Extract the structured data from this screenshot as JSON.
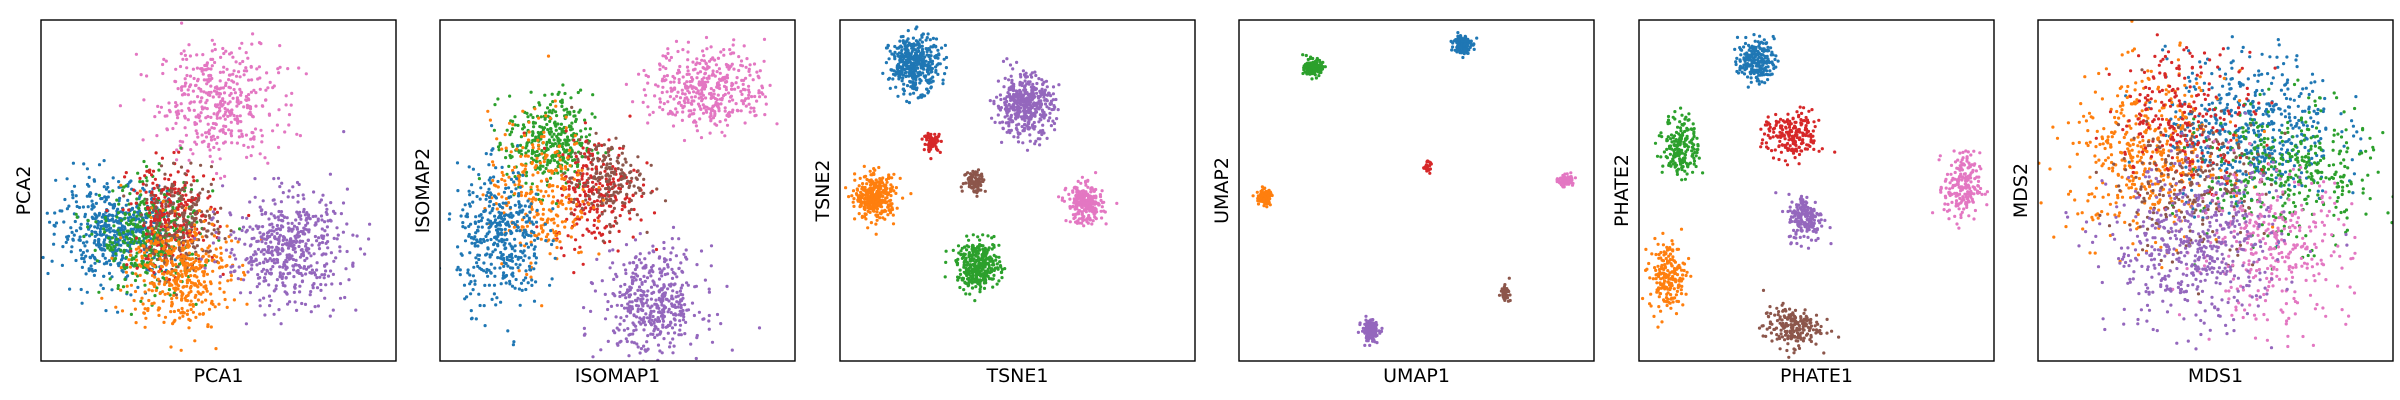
{
  "colors": {
    "blue": "#1f77b4",
    "orange": "#ff7f0e",
    "green": "#2ca02c",
    "red": "#d62728",
    "purple": "#9467bd",
    "brown": "#8c564b",
    "pink": "#e377c2"
  },
  "chart_data": [
    {
      "type": "scatter",
      "xlabel": "PCA1",
      "ylabel": "PCA2",
      "xlim": [
        0,
        1
      ],
      "ylim": [
        0,
        1
      ],
      "ticks": "none",
      "grid": false,
      "clusters": [
        {
          "color": "pink",
          "cx": 0.5,
          "cy": 0.76,
          "sx": 0.085,
          "sy": 0.085,
          "n": 420
        },
        {
          "color": "blue",
          "cx": 0.21,
          "cy": 0.38,
          "sx": 0.08,
          "sy": 0.07,
          "n": 520
        },
        {
          "color": "green",
          "cx": 0.31,
          "cy": 0.36,
          "sx": 0.07,
          "sy": 0.08,
          "n": 380
        },
        {
          "color": "red",
          "cx": 0.37,
          "cy": 0.42,
          "sx": 0.06,
          "sy": 0.08,
          "n": 260
        },
        {
          "color": "brown",
          "cx": 0.4,
          "cy": 0.4,
          "sx": 0.055,
          "sy": 0.07,
          "n": 200
        },
        {
          "color": "orange",
          "cx": 0.39,
          "cy": 0.26,
          "sx": 0.07,
          "sy": 0.08,
          "n": 420
        },
        {
          "color": "purple",
          "cx": 0.69,
          "cy": 0.33,
          "sx": 0.085,
          "sy": 0.08,
          "n": 520
        }
      ]
    },
    {
      "type": "scatter",
      "xlabel": "ISOMAP1",
      "ylabel": "ISOMAP2",
      "xlim": [
        0,
        1
      ],
      "ylim": [
        0,
        1
      ],
      "ticks": "none",
      "grid": false,
      "clusters": [
        {
          "color": "pink",
          "cx": 0.76,
          "cy": 0.8,
          "sx": 0.08,
          "sy": 0.06,
          "n": 420
        },
        {
          "color": "green",
          "cx": 0.31,
          "cy": 0.64,
          "sx": 0.06,
          "sy": 0.07,
          "n": 360
        },
        {
          "color": "red",
          "cx": 0.44,
          "cy": 0.5,
          "sx": 0.06,
          "sy": 0.08,
          "n": 260
        },
        {
          "color": "brown",
          "cx": 0.47,
          "cy": 0.53,
          "sx": 0.05,
          "sy": 0.06,
          "n": 180
        },
        {
          "color": "orange",
          "cx": 0.28,
          "cy": 0.5,
          "sx": 0.07,
          "sy": 0.11,
          "n": 280
        },
        {
          "color": "blue",
          "cx": 0.17,
          "cy": 0.36,
          "sx": 0.06,
          "sy": 0.1,
          "n": 420
        },
        {
          "color": "purple",
          "cx": 0.6,
          "cy": 0.17,
          "sx": 0.07,
          "sy": 0.08,
          "n": 460
        }
      ]
    },
    {
      "type": "scatter",
      "xlabel": "TSNE1",
      "ylabel": "TSNE2",
      "xlim": [
        0,
        1
      ],
      "ylim": [
        0,
        1
      ],
      "ticks": "none",
      "grid": false,
      "clusters": [
        {
          "color": "blue",
          "cx": 0.21,
          "cy": 0.87,
          "sx": 0.035,
          "sy": 0.04,
          "n": 420
        },
        {
          "color": "purple",
          "cx": 0.52,
          "cy": 0.75,
          "sx": 0.04,
          "sy": 0.045,
          "n": 460
        },
        {
          "color": "red",
          "cx": 0.26,
          "cy": 0.64,
          "sx": 0.012,
          "sy": 0.014,
          "n": 60
        },
        {
          "color": "brown",
          "cx": 0.38,
          "cy": 0.53,
          "sx": 0.015,
          "sy": 0.018,
          "n": 90
        },
        {
          "color": "orange",
          "cx": 0.1,
          "cy": 0.48,
          "sx": 0.028,
          "sy": 0.032,
          "n": 340
        },
        {
          "color": "pink",
          "cx": 0.69,
          "cy": 0.46,
          "sx": 0.025,
          "sy": 0.028,
          "n": 260
        },
        {
          "color": "green",
          "cx": 0.39,
          "cy": 0.28,
          "sx": 0.03,
          "sy": 0.035,
          "n": 360
        }
      ]
    },
    {
      "type": "scatter",
      "xlabel": "UMAP1",
      "ylabel": "UMAP2",
      "xlim": [
        0,
        1
      ],
      "ylim": [
        0,
        1
      ],
      "ticks": "none",
      "grid": false,
      "clusters": [
        {
          "color": "blue",
          "cx": 0.63,
          "cy": 0.93,
          "sx": 0.012,
          "sy": 0.014,
          "n": 160
        },
        {
          "color": "green",
          "cx": 0.21,
          "cy": 0.86,
          "sx": 0.013,
          "sy": 0.012,
          "n": 160
        },
        {
          "color": "red",
          "cx": 0.53,
          "cy": 0.57,
          "sx": 0.005,
          "sy": 0.007,
          "n": 30
        },
        {
          "color": "pink",
          "cx": 0.92,
          "cy": 0.53,
          "sx": 0.01,
          "sy": 0.008,
          "n": 100
        },
        {
          "color": "orange",
          "cx": 0.07,
          "cy": 0.48,
          "sx": 0.01,
          "sy": 0.012,
          "n": 100
        },
        {
          "color": "brown",
          "cx": 0.75,
          "cy": 0.2,
          "sx": 0.006,
          "sy": 0.01,
          "n": 50
        },
        {
          "color": "purple",
          "cx": 0.37,
          "cy": 0.09,
          "sx": 0.012,
          "sy": 0.016,
          "n": 140
        }
      ]
    },
    {
      "type": "scatter",
      "xlabel": "PHATE1",
      "ylabel": "PHATE2",
      "xlim": [
        0,
        1
      ],
      "ylim": [
        0,
        1
      ],
      "ticks": "none",
      "grid": false,
      "clusters": [
        {
          "color": "blue",
          "cx": 0.33,
          "cy": 0.88,
          "sx": 0.025,
          "sy": 0.03,
          "n": 220
        },
        {
          "color": "green",
          "cx": 0.12,
          "cy": 0.63,
          "sx": 0.025,
          "sy": 0.045,
          "n": 200
        },
        {
          "color": "red",
          "cx": 0.43,
          "cy": 0.66,
          "sx": 0.04,
          "sy": 0.035,
          "n": 200
        },
        {
          "color": "pink",
          "cx": 0.91,
          "cy": 0.51,
          "sx": 0.025,
          "sy": 0.05,
          "n": 200
        },
        {
          "color": "purple",
          "cx": 0.47,
          "cy": 0.42,
          "sx": 0.025,
          "sy": 0.035,
          "n": 180
        },
        {
          "color": "orange",
          "cx": 0.08,
          "cy": 0.25,
          "sx": 0.025,
          "sy": 0.05,
          "n": 200
        },
        {
          "color": "brown",
          "cx": 0.43,
          "cy": 0.1,
          "sx": 0.04,
          "sy": 0.03,
          "n": 200
        }
      ]
    },
    {
      "type": "scatter",
      "xlabel": "MDS1",
      "ylabel": "MDS2",
      "xlim": [
        0,
        1
      ],
      "ylim": [
        0,
        1
      ],
      "ticks": "none",
      "grid": false,
      "clusters": [
        {
          "color": "blue",
          "cx": 0.6,
          "cy": 0.68,
          "sx": 0.12,
          "sy": 0.11,
          "n": 520
        },
        {
          "color": "orange",
          "cx": 0.31,
          "cy": 0.6,
          "sx": 0.11,
          "sy": 0.12,
          "n": 460
        },
        {
          "color": "green",
          "cx": 0.71,
          "cy": 0.55,
          "sx": 0.12,
          "sy": 0.1,
          "n": 380
        },
        {
          "color": "red",
          "cx": 0.42,
          "cy": 0.72,
          "sx": 0.1,
          "sy": 0.1,
          "n": 240
        },
        {
          "color": "brown",
          "cx": 0.43,
          "cy": 0.52,
          "sx": 0.11,
          "sy": 0.11,
          "n": 220
        },
        {
          "color": "pink",
          "cx": 0.66,
          "cy": 0.33,
          "sx": 0.11,
          "sy": 0.11,
          "n": 340
        },
        {
          "color": "purple",
          "cx": 0.44,
          "cy": 0.33,
          "sx": 0.12,
          "sy": 0.12,
          "n": 520
        }
      ]
    }
  ]
}
